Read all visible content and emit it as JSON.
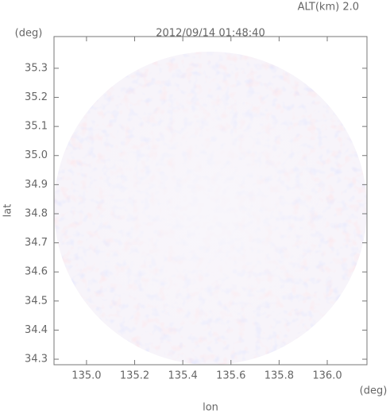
{
  "chart_data": {
    "type": "image",
    "title": "2012/09/14 01:48:40",
    "subtitle": "ALT(km) 2.0",
    "x_label": "lon",
    "y_label": "lat",
    "x_unit": "(deg)",
    "y_unit": "(deg)",
    "xlim": [
      134.865,
      136.165
    ],
    "ylim": [
      34.281,
      35.409
    ],
    "xticks": [
      {
        "value": 135,
        "label": "135.0"
      },
      135.2,
      135.4,
      135.6,
      135.8,
      {
        "value": 136,
        "label": "136.0"
      }
    ],
    "yticks": [
      34.3,
      34.4,
      34.5,
      34.6,
      34.7,
      34.8,
      34.9,
      {
        "value": 35,
        "label": "35.0"
      },
      35.1,
      35.2,
      35.3
    ]
  }
}
